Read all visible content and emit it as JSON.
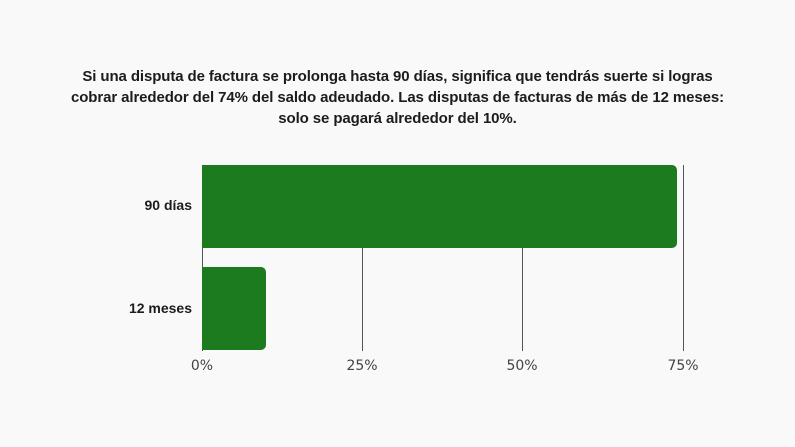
{
  "title": {
    "line1": "Si una disputa de factura se prolonga hasta 90 días, significa que tendrás suerte si logras",
    "line2": "cobrar alrededor del 74% del saldo adeudado. Las disputas de facturas de más de 12 meses:",
    "line3": "solo se pagará alrededor del 10%."
  },
  "axis": {
    "ticks": [
      "0%",
      "25%",
      "50%",
      "75%"
    ]
  },
  "bars": [
    {
      "label": "90 días",
      "value": 74
    },
    {
      "label": "12 meses",
      "value": 10
    }
  ],
  "colors": {
    "bar": "#1b7b1e",
    "background": "#f9f9f9",
    "gridline": "#555555"
  },
  "chart_data": {
    "type": "bar",
    "orientation": "horizontal",
    "title": "Si una disputa de factura se prolonga hasta 90 días, significa que tendrás suerte si logras cobrar alrededor del 74% del saldo adeudado. Las disputas de facturas de más de 12 meses: solo se pagará alrededor del 10%.",
    "categories": [
      "90 días",
      "12 meses"
    ],
    "values": [
      74,
      10
    ],
    "xlabel": "",
    "ylabel": "",
    "xlim": [
      0,
      75
    ],
    "x_ticks": [
      "0%",
      "25%",
      "50%",
      "75%"
    ],
    "grid": true,
    "legend": null,
    "unit": "%"
  }
}
